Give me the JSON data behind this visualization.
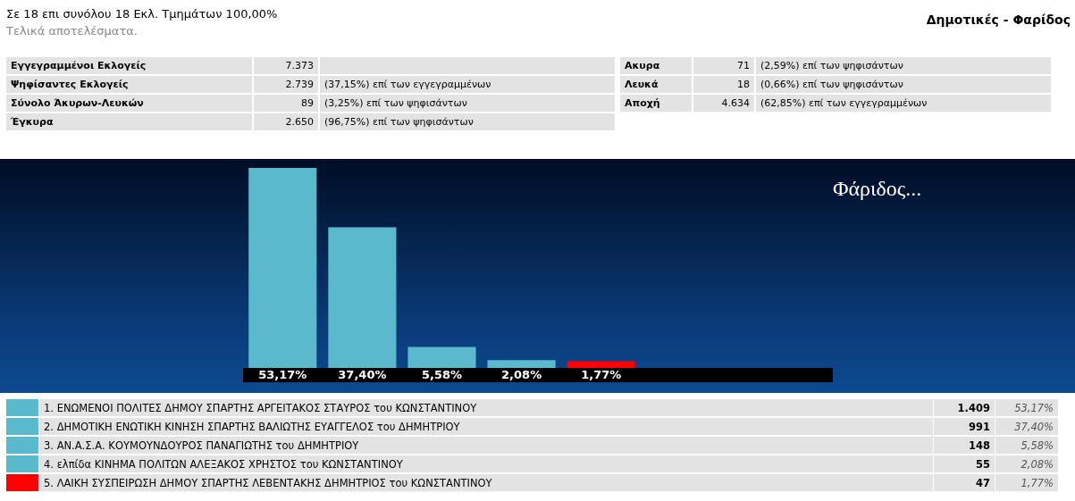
{
  "chart_data": {
    "type": "bar",
    "title": "Δημοτικές - Φαρίδος",
    "subtitle": "Τελικά αποτελέσματα.",
    "categories": [
      null,
      null,
      null,
      null,
      null
    ],
    "values": [
      53.17,
      37.4,
      5.58,
      2.08,
      1.77
    ],
    "value_labels": [
      "53,17%",
      "37,40%",
      "5,58%",
      "2,08%",
      "1,77%"
    ],
    "colors": [
      "#5ab9cd",
      "#5ab9cd",
      "#5ab9cd",
      "#5ab9cd",
      "#ff0000"
    ],
    "annotations": [
      "Σε 18 επι συνόλου 18 Εκλ. Τμημάτων 100,00%",
      "Εγγεγραμμένοι Εκλογείς",
      "7.373",
      "Ψηφίσαντες Εκλογείς",
      "2.739",
      "(37,15%) επί των εγγεγραμμένων",
      "Σύνολο Άκυρων-Λευκών",
      "89",
      "(3,25%) επί των ψηφισάντων",
      "Έγκυρα",
      "2.650",
      "(96,75%) επί των ψηφισάντων",
      "Ακυρα",
      "71",
      "(2,59%) επί των ψηφισάντων",
      "Λευκά",
      "18",
      "(0,66%) επί των ψηφισάντων",
      "Αποχή",
      "4.634",
      "(62,85%) επί των εγγεγραμμένων",
      "Φάριδος...",
      "1. ΕΝΩΜΕΝΟΙ ΠΟΛΙΤΕΣ ΔΗΜΟΥ ΣΠΑΡΤΗΣ ΑΡΓΕΙΤΑΚΟΣ ΣΤΑΥΡΟΣ του ΚΩΝΣΤΑΝΤΙΝΟΥ",
      "2. ΔΗΜΟΤΙΚΗ ΕΝΩΤΙΚΗ ΚΙΝΗΣΗ ΣΠΑΡΤΗΣ ΒΑΛΙΩΤΗΣ ΕΥΑΓΓΕΛΟΣ του ΔΗΜΗΤΡΙΟΥ",
      "3. ΑΝ.Α.Σ.Α. ΚΟΥΜΟΥΝΔΟΥΡΟΣ ΠΑΝΑΓΙΩΤΗΣ του ΔΗΜΗΤΡΙΟΥ",
      "4. ελπίδα ΚΙΝΗΜΑ ΠΟΛΙΤΩΝ ΑΛΕΞΑΚΟΣ ΧΡΗΣΤΟΣ του ΚΩΝΣΤΑΝΤΙΝΟΥ",
      "5. ΛΑΙΚΗ ΣΥΣΠΕΙΡΩΣΗ ΔΗΜΟΥ ΣΠΑΡΤΗΣ ΛΕΒΕΝΤΑΚΗΣ ΔΗΜΗΤΡΙΟΣ του ΚΩΝΣΤΑΝΤΙΝΟΥ",
      "1.409",
      "991",
      "148",
      "55",
      "47"
    ]
  }
}
